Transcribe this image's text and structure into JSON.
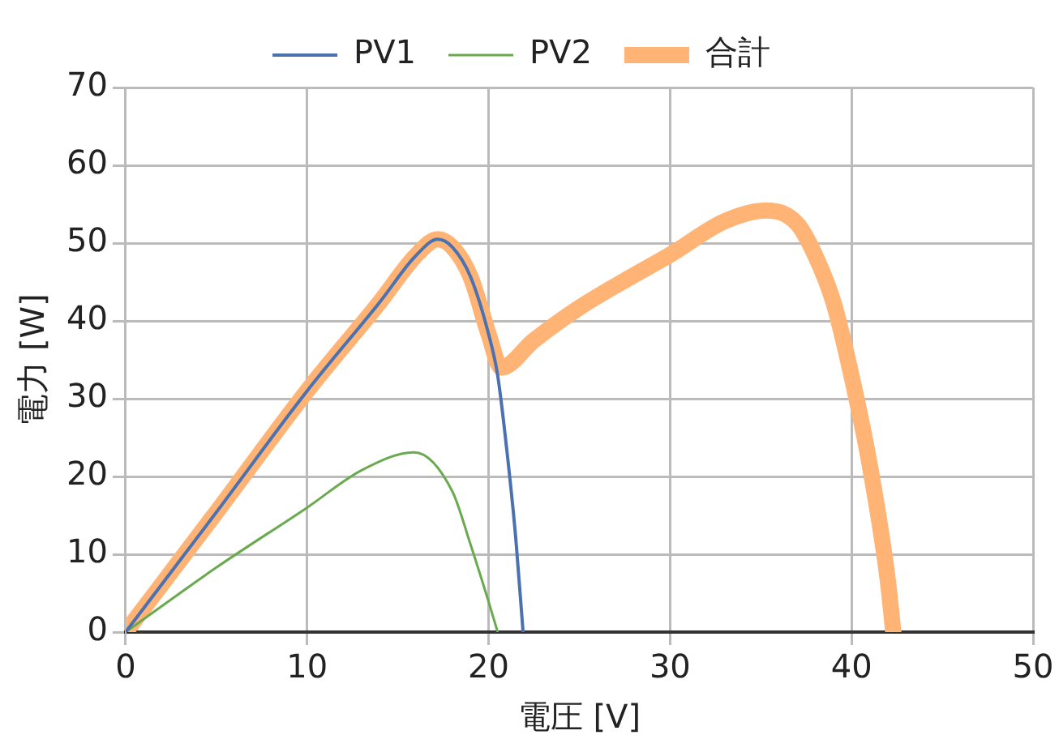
{
  "chart_data": {
    "type": "line",
    "xlabel": "電圧 [V]",
    "ylabel": "電力 [W]",
    "xlim": [
      0,
      50
    ],
    "xticks": [
      0,
      10,
      20,
      30,
      40,
      50
    ],
    "ylim": [
      0,
      70
    ],
    "yticks": [
      0,
      10,
      20,
      30,
      40,
      50,
      60,
      70
    ],
    "grid": true,
    "legend": "top",
    "marker": "none",
    "line_style": "solid",
    "series": [
      {
        "name": "PV1",
        "color": "#4a72b0",
        "x": [
          0,
          5,
          10,
          14,
          16,
          17.2,
          18,
          19,
          20,
          20.5,
          21,
          21.5,
          21.9
        ],
        "values": [
          0,
          15.4,
          31,
          42.4,
          48.4,
          50.5,
          49.5,
          45.7,
          38.3,
          33,
          23.5,
          12,
          0
        ]
      },
      {
        "name": "PV2",
        "color": "#6aaa4f",
        "x": [
          0,
          5,
          10,
          13,
          15.9,
          18,
          19,
          20,
          20.5
        ],
        "values": [
          0,
          8.3,
          16,
          20.8,
          23.1,
          18.1,
          11.3,
          3.9,
          0
        ]
      },
      {
        "name": "合計",
        "color": "#ffb375",
        "x": [
          0,
          5,
          10,
          14,
          16,
          17.2,
          18,
          19,
          20,
          20.7,
          22.5,
          25,
          27.5,
          30,
          33,
          35.3,
          37,
          38,
          39,
          40,
          41,
          42,
          42.3
        ],
        "values": [
          0,
          15.4,
          31,
          42.4,
          48.4,
          50.5,
          49.5,
          45.7,
          38.3,
          34,
          37.5,
          41.7,
          45.2,
          48.5,
          52.8,
          54.2,
          52.5,
          48.4,
          42.4,
          32.9,
          21.5,
          6.6,
          0
        ]
      }
    ]
  }
}
